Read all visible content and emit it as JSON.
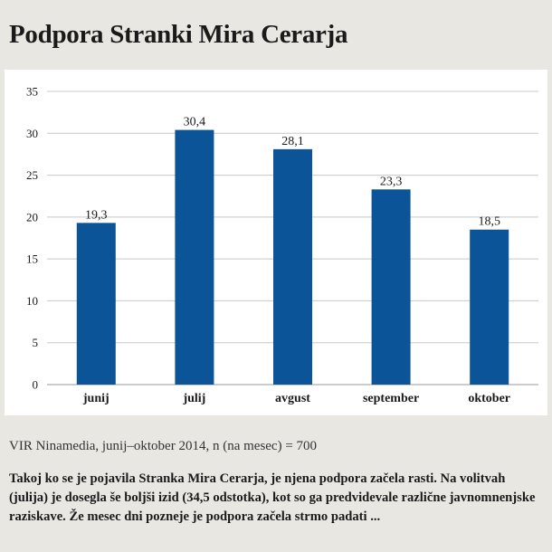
{
  "title": "Podpora Stranki Mira Cerarja",
  "source": "VIR Ninamedia, junij–oktober 2014, n (na mesec) = 700",
  "caption": "Takoj ko se je pojavila Stranka Mira Cerarja, je njena podpora začela rasti. Na volitvah (julija) je dosegla še boljši izid (34,5 odstotka), kot so ga predvidevale različne javnomnenjske raziskave. Že mesec dni pozneje je podpora začela strmo padati ...",
  "colors": {
    "bar": "#0b5497",
    "grid": "#c8c8c8",
    "background": "#e9e7e2"
  },
  "chart_data": {
    "type": "bar",
    "title": "Podpora Stranki Mira Cerarja",
    "categories": [
      "junij",
      "julij",
      "avgust",
      "september",
      "oktober"
    ],
    "values": [
      19.3,
      30.4,
      28.1,
      23.3,
      18.5
    ],
    "value_labels": [
      "19,3",
      "30,4",
      "28,1",
      "23,3",
      "18,5"
    ],
    "ylim": [
      0,
      35
    ],
    "yticks": [
      0,
      5,
      10,
      15,
      20,
      25,
      30,
      35
    ],
    "xlabel": "",
    "ylabel": "",
    "grid": true,
    "legend": "none"
  }
}
